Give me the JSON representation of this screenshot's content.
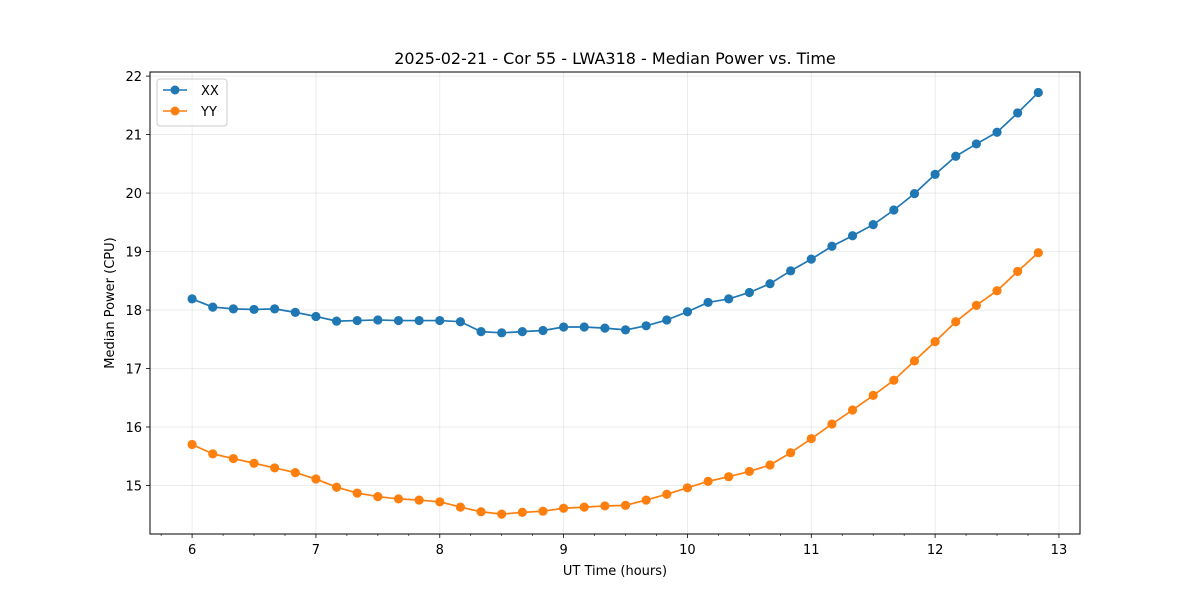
{
  "chart_data": {
    "type": "line",
    "title": "2025-02-21 - Cor 55 - LWA318 - Median Power vs. Time",
    "xlabel": "UT Time (hours)",
    "ylabel": "Median Power (CPU)",
    "xlim": [
      5.66,
      13.17
    ],
    "ylim": [
      14.17,
      22.07
    ],
    "xticks": [
      6,
      7,
      8,
      9,
      10,
      11,
      12,
      13
    ],
    "yticks": [
      15,
      16,
      17,
      18,
      19,
      20,
      21,
      22
    ],
    "grid": true,
    "legend_position": "upper-left",
    "x": [
      6.0,
      6.1667,
      6.3333,
      6.5,
      6.6667,
      6.8333,
      7.0,
      7.1667,
      7.3333,
      7.5,
      7.6667,
      7.8333,
      8.0,
      8.1667,
      8.3333,
      8.5,
      8.6667,
      8.8333,
      9.0,
      9.1667,
      9.3333,
      9.5,
      9.6667,
      9.8333,
      10.0,
      10.1667,
      10.3333,
      10.5,
      10.6667,
      10.8333,
      11.0,
      11.1667,
      11.3333,
      11.5,
      11.6667,
      11.8333,
      12.0,
      12.1667,
      12.3333,
      12.5,
      12.6667,
      12.8333
    ],
    "series": [
      {
        "name": "XX",
        "color": "#1f77b4",
        "values": [
          18.19,
          18.05,
          18.02,
          18.01,
          18.02,
          17.96,
          17.89,
          17.81,
          17.82,
          17.83,
          17.82,
          17.82,
          17.82,
          17.8,
          17.63,
          17.61,
          17.63,
          17.65,
          17.71,
          17.71,
          17.69,
          17.66,
          17.73,
          17.83,
          17.97,
          18.13,
          18.19,
          18.3,
          18.45,
          18.67,
          18.87,
          19.09,
          19.27,
          19.46,
          19.71,
          19.99,
          20.32,
          20.63,
          20.84,
          21.04,
          21.37,
          21.72
        ]
      },
      {
        "name": "YY",
        "color": "#ff7f0e",
        "values": [
          15.7,
          15.54,
          15.46,
          15.38,
          15.3,
          15.22,
          15.11,
          14.97,
          14.87,
          14.81,
          14.77,
          14.75,
          14.72,
          14.63,
          14.55,
          14.51,
          14.54,
          14.56,
          14.61,
          14.63,
          14.65,
          14.66,
          14.75,
          14.85,
          14.96,
          15.07,
          15.15,
          15.24,
          15.35,
          15.56,
          15.8,
          16.05,
          16.29,
          16.54,
          16.8,
          17.13,
          17.46,
          17.8,
          18.08,
          18.33,
          18.66,
          18.98
        ]
      }
    ]
  }
}
